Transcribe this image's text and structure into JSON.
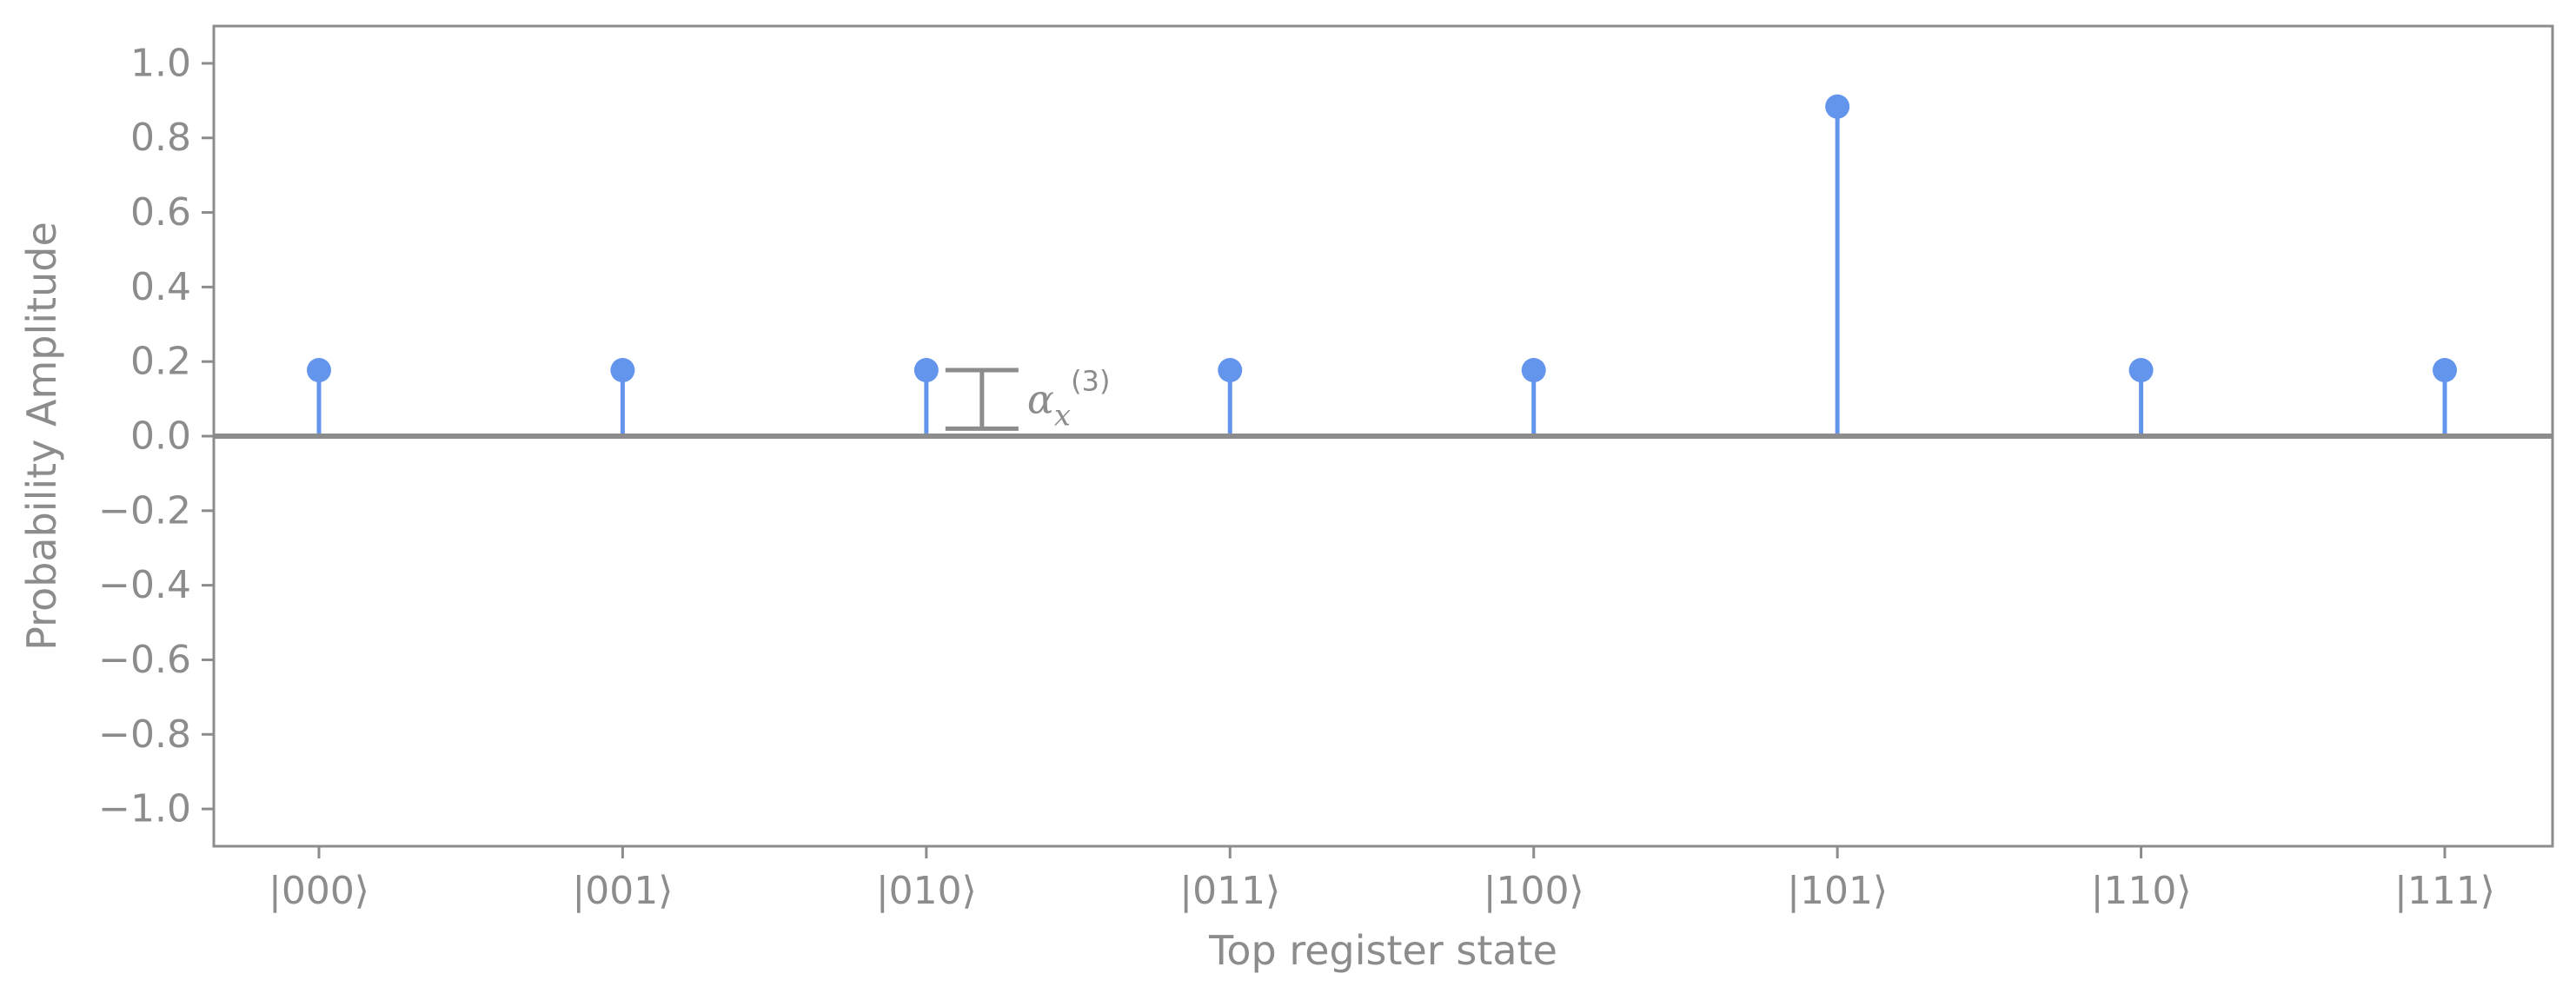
{
  "chart_data": {
    "type": "stem",
    "title": "",
    "xlabel": "Top register state",
    "ylabel": "Probability Amplitude",
    "categories": [
      "|000⟩",
      "|001⟩",
      "|010⟩",
      "|011⟩",
      "|100⟩",
      "|101⟩",
      "|110⟩",
      "|111⟩"
    ],
    "values": [
      0.177,
      0.177,
      0.177,
      0.177,
      0.177,
      0.884,
      0.177,
      0.177
    ],
    "ylim": [
      -1.1,
      1.1
    ],
    "yticks": [
      1.0,
      0.8,
      0.6,
      0.4,
      0.2,
      0.0,
      -0.2,
      -0.4,
      -0.6,
      -0.8,
      -1.0
    ],
    "ytick_labels": [
      "1.0",
      "0.8",
      "0.6",
      "0.4",
      "0.2",
      "0.0",
      "−0.2",
      "−0.4",
      "−0.6",
      "−0.8",
      "−1.0"
    ],
    "annotation": {
      "base": "α",
      "subscript": "x",
      "superscript": "(3)",
      "span_from": 0.02,
      "span_to": 0.177,
      "after_category_index": 2
    },
    "grid": false,
    "legend": "none",
    "colors": {
      "series": "#6495ed",
      "axis": "#8c8c8c",
      "text": "#8c8c8c"
    }
  }
}
